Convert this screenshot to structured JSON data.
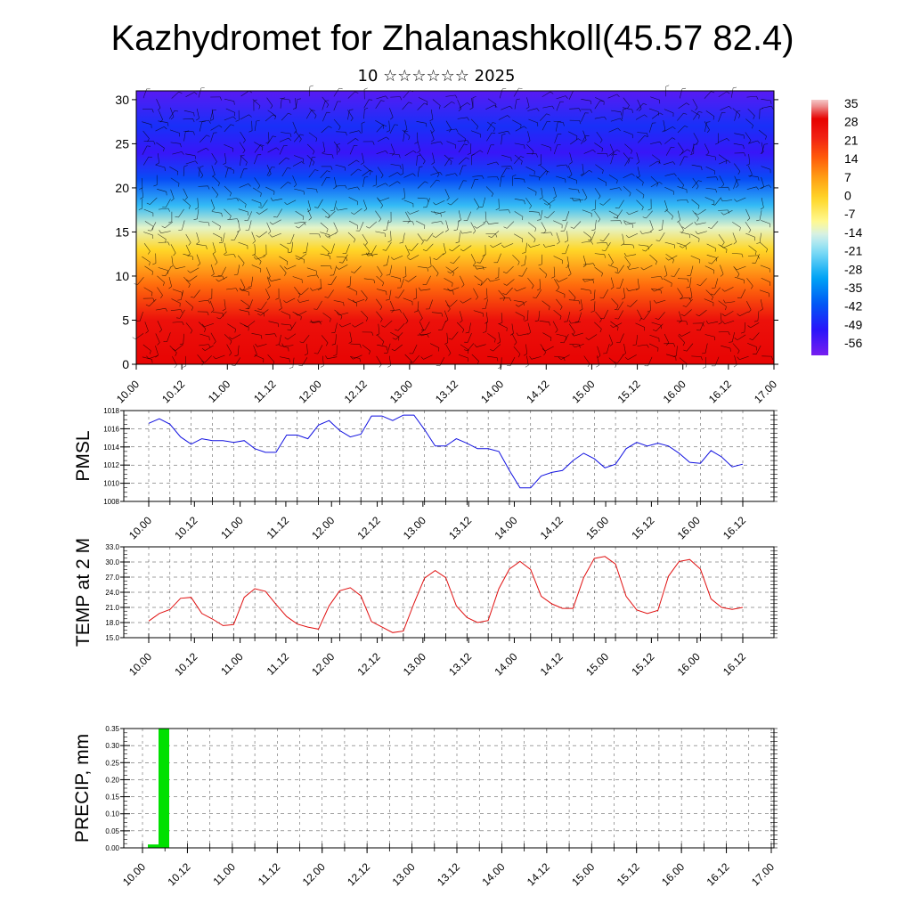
{
  "header": {
    "title": "Kazhydromet for Zhalanashkoll(45.57 82.4)",
    "subtitle": "10 ☆☆☆☆☆☆ 2025"
  },
  "time_ticks": [
    "10.00",
    "10.12",
    "11.00",
    "11.12",
    "12.00",
    "12.12",
    "13.00",
    "13.12",
    "14.00",
    "14.12",
    "15.00",
    "15.12",
    "16.00",
    "16.12",
    "17.00"
  ],
  "chart_data": [
    {
      "type": "heatmap",
      "title": "",
      "xlabel": "",
      "ylabel": "",
      "x": [
        "10.00",
        "10.12",
        "11.00",
        "11.12",
        "12.00",
        "12.12",
        "13.00",
        "13.12",
        "14.00",
        "14.12",
        "15.00",
        "15.12",
        "16.00",
        "16.12",
        "17.00"
      ],
      "y_ticks": [
        0,
        5,
        10,
        15,
        20,
        25,
        30
      ],
      "ylim": [
        0,
        31
      ],
      "colorbar_labels": [
        35,
        28,
        21,
        14,
        7,
        0,
        -7,
        -14,
        -21,
        -28,
        -35,
        -42,
        -49,
        -56
      ],
      "colorbar_range": [
        -60,
        38
      ],
      "temperature_by_level": [
        {
          "level": 0,
          "temp": 30
        },
        {
          "level": 5,
          "temp": 27
        },
        {
          "level": 9,
          "temp": 14
        },
        {
          "level": 13,
          "temp": 0
        },
        {
          "level": 15.5,
          "temp": -12
        },
        {
          "level": 18,
          "temp": -26
        },
        {
          "level": 21,
          "temp": -42
        },
        {
          "level": 24,
          "temp": -52
        },
        {
          "level": 27,
          "temp": -46
        },
        {
          "level": 31,
          "temp": -56
        }
      ],
      "overlay": "wind barbs"
    },
    {
      "type": "line",
      "ylabel": "PMSL",
      "ylim": [
        1008,
        1018
      ],
      "y_ticks": [
        1008,
        1010,
        1012,
        1014,
        1016,
        1018
      ],
      "x_step_hours": 3,
      "series": [
        {
          "color": "#1010e0",
          "values": [
            1016.6,
            1017.1,
            1016.5,
            1015.1,
            1014.3,
            1014.9,
            1014.7,
            1014.7,
            1014.5,
            1014.7,
            1013.8,
            1013.4,
            1013.4,
            1015.3,
            1015.3,
            1014.9,
            1016.4,
            1016.9,
            1015.8,
            1015.1,
            1015.4,
            1017.4,
            1017.4,
            1016.9,
            1017.5,
            1017.5,
            1015.9,
            1014.1,
            1014.1,
            1014.9,
            1014.4,
            1013.8,
            1013.8,
            1013.5,
            1011.4,
            1009.5,
            1009.5,
            1010.8,
            1011.2,
            1011.4,
            1012.5,
            1013.3,
            1012.7,
            1011.7,
            1012.1,
            1013.8,
            1014.5,
            1014.1,
            1014.4,
            1014.1,
            1013.3,
            1012.3,
            1012.2,
            1013.6,
            1012.9,
            1011.8,
            1012.1
          ]
        }
      ]
    },
    {
      "type": "line",
      "ylabel": "TEMP at 2 M",
      "ylim": [
        15,
        33
      ],
      "y_ticks": [
        "15.0",
        "18.0",
        "21.0",
        "24.0",
        "27.0",
        "30.0",
        "33.0"
      ],
      "x_step_hours": 3,
      "series": [
        {
          "color": "#e01010",
          "values": [
            18.3,
            19.8,
            20.6,
            22.8,
            23.0,
            19.8,
            18.7,
            17.4,
            17.6,
            23.0,
            24.7,
            24.2,
            21.6,
            19.2,
            17.7,
            17.1,
            16.7,
            21.3,
            24.3,
            24.9,
            23.3,
            18.2,
            17.1,
            16.0,
            16.3,
            21.8,
            26.8,
            28.3,
            26.9,
            21.3,
            19.0,
            18.0,
            18.4,
            24.7,
            28.6,
            30.1,
            28.5,
            23.2,
            21.7,
            20.8,
            20.8,
            26.9,
            30.7,
            31.1,
            29.6,
            23.2,
            20.5,
            19.8,
            20.4,
            27.2,
            30.1,
            30.5,
            28.6,
            22.7,
            21.0,
            20.6,
            21.0
          ]
        }
      ]
    },
    {
      "type": "bar",
      "ylabel": "PRECIP, mm",
      "ylim": [
        0,
        0.35
      ],
      "y_ticks": [
        "0.00",
        "0.05",
        "0.10",
        "0.15",
        "0.20",
        "0.25",
        "0.30",
        "0.35"
      ],
      "x_step_hours": 3,
      "color": "#00e000",
      "values": [
        0.01,
        0.35
      ]
    }
  ]
}
